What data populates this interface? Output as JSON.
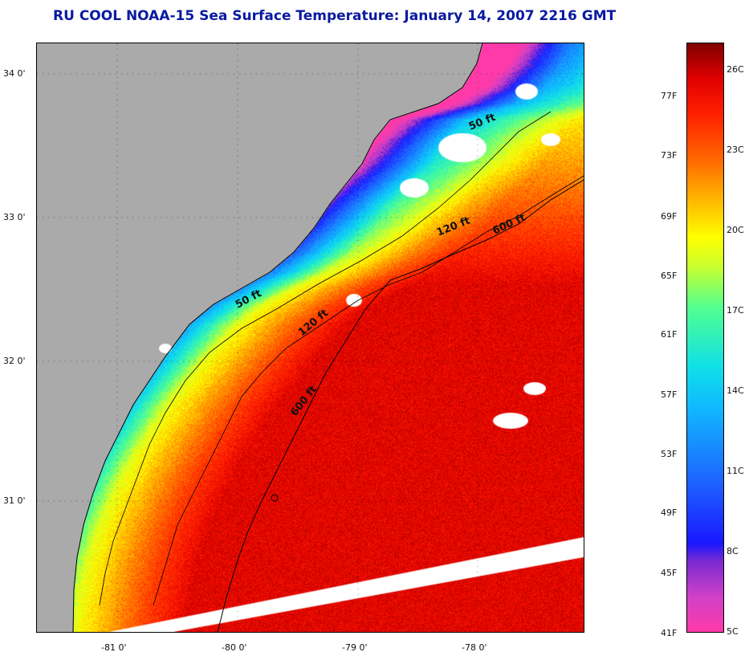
{
  "title": "RU COOL  NOAA-15  Sea Surface Temperature:  January 14, 2007 2216 GMT",
  "lat_labels": [
    "34 0'",
    "33 0'",
    "32 0'",
    "31 0'"
  ],
  "lon_labels": [
    "-81 0'",
    "-80 0'",
    "-79 0'",
    "-78 0'"
  ],
  "contours": [
    "50 ft",
    "120 ft",
    "600 ft",
    "50 ft",
    "120 ft",
    "600 ft"
  ],
  "colorbar": {
    "fahrenheit": [
      "77F",
      "73F",
      "69F",
      "65F",
      "61F",
      "57F",
      "53F",
      "49F",
      "45F",
      "41F"
    ],
    "celsius": [
      "26C",
      "23C",
      "20C",
      "17C",
      "14C",
      "11C",
      "8C",
      "5C"
    ]
  },
  "colors": {
    "land": "#aaaaaa",
    "title": "#0a1aa0",
    "cloud": "#ffffff"
  }
}
